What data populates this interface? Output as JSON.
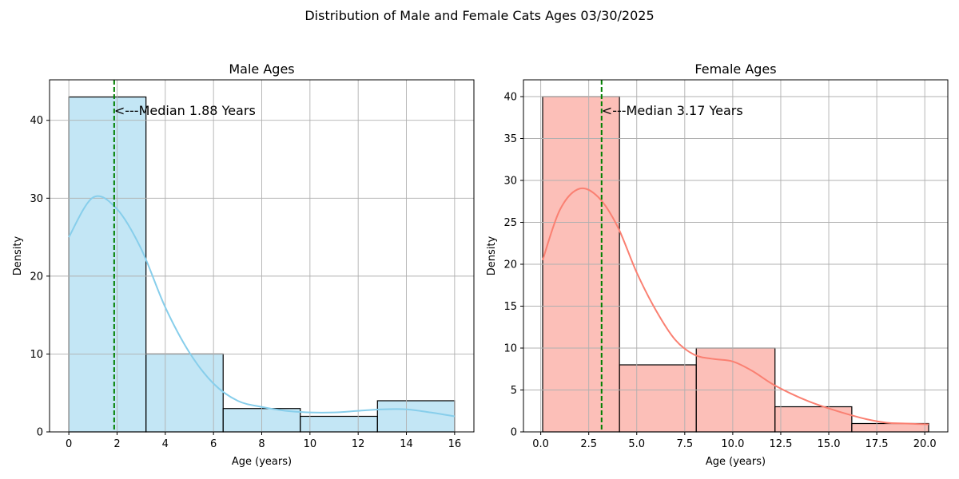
{
  "figure": {
    "title": "Distribution of Male and Female Cats Ages 03/30/2025"
  },
  "chart_data": [
    {
      "type": "bar",
      "title": "Male Ages",
      "xlabel": "Age (years)",
      "ylabel": "Density",
      "xlim": [
        -0.8,
        16.8
      ],
      "ylim": [
        0,
        45.2
      ],
      "xticks": [
        0,
        2,
        4,
        6,
        8,
        10,
        12,
        14,
        16
      ],
      "yticks": [
        0,
        10,
        20,
        30,
        40
      ],
      "grid": true,
      "bins": [
        {
          "x0": 0,
          "x1": 3.2,
          "value": 43
        },
        {
          "x0": 3.2,
          "x1": 6.4,
          "value": 10
        },
        {
          "x0": 6.4,
          "x1": 9.6,
          "value": 3
        },
        {
          "x0": 9.6,
          "x1": 12.8,
          "value": 2
        },
        {
          "x0": 12.8,
          "x1": 16,
          "value": 4
        }
      ],
      "kde": {
        "x": [
          0,
          1,
          2,
          3,
          4,
          5,
          6,
          7,
          8,
          9,
          10,
          11,
          12,
          13,
          14,
          15,
          16
        ],
        "y": [
          25,
          30.1,
          28.6,
          23.5,
          16,
          10.2,
          6.2,
          4,
          3.2,
          2.7,
          2.5,
          2.5,
          2.7,
          2.9,
          2.9,
          2.5,
          2
        ]
      },
      "median": 1.88,
      "median_label": "<---Median 1.88 Years",
      "colors": {
        "fill": "#87ceeb",
        "line": "#87ceeb",
        "median": "#008000"
      }
    },
    {
      "type": "bar",
      "title": "Female Ages",
      "xlabel": "Age (years)",
      "ylabel": "Density",
      "xlim": [
        -0.9,
        21.2
      ],
      "ylim": [
        0,
        42
      ],
      "xticks": [
        0,
        2.5,
        5,
        7.5,
        10,
        12.5,
        15,
        17.5,
        20
      ],
      "xtick_labels": [
        "0.0",
        "2.5",
        "5.0",
        "7.5",
        "10.0",
        "12.5",
        "15.0",
        "17.5",
        "20.0"
      ],
      "yticks": [
        0,
        5,
        10,
        15,
        20,
        25,
        30,
        35,
        40
      ],
      "grid": true,
      "bins": [
        {
          "x0": 0.1,
          "x1": 4.1,
          "value": 40
        },
        {
          "x0": 4.1,
          "x1": 8.1,
          "value": 8
        },
        {
          "x0": 8.1,
          "x1": 12.2,
          "value": 10
        },
        {
          "x0": 12.2,
          "x1": 16.2,
          "value": 3
        },
        {
          "x0": 16.2,
          "x1": 20.2,
          "value": 1
        }
      ],
      "kde": {
        "x": [
          0.1,
          1,
          2,
          3,
          4,
          5,
          6,
          7,
          8,
          9,
          10,
          11,
          12,
          13,
          14,
          15,
          16,
          17,
          18,
          19,
          20.2
        ],
        "y": [
          20.5,
          26.5,
          29,
          28,
          24.5,
          19,
          14.5,
          11,
          9.2,
          8.7,
          8.4,
          7.3,
          5.8,
          4.6,
          3.6,
          2.8,
          2.1,
          1.5,
          1.1,
          1,
          0.9
        ]
      },
      "median": 3.17,
      "median_label": "<---Median 3.17 Years",
      "colors": {
        "fill": "#fa8072",
        "line": "#fa8072",
        "median": "#008000"
      }
    }
  ]
}
